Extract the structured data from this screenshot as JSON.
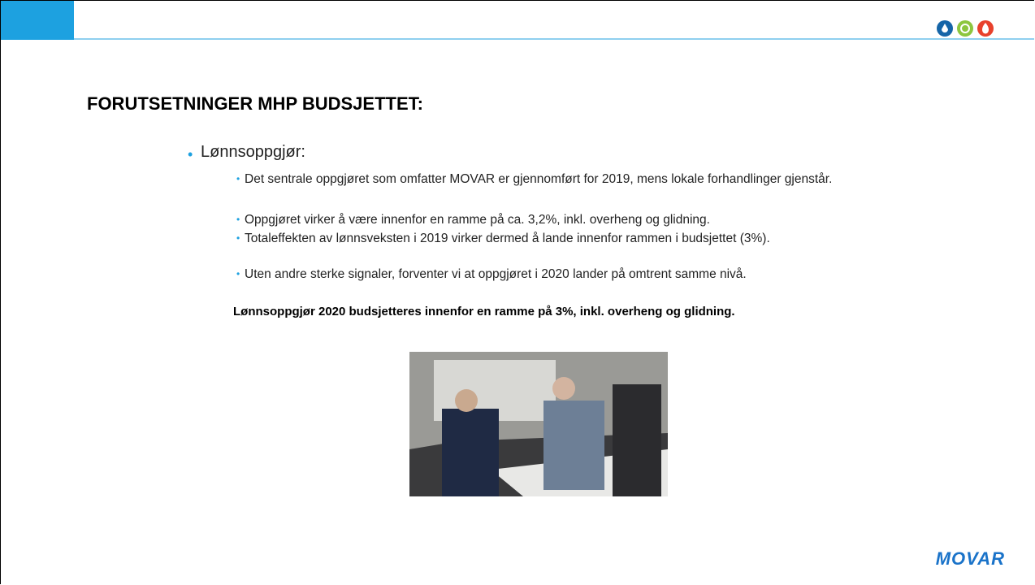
{
  "header": {
    "title": "FORUTSETNINGER MHP BUDSJETTET:"
  },
  "content": {
    "heading": "Lønnsoppgjør:",
    "bullets": [
      "Det sentrale oppgjøret som omfatter MOVAR er gjennomført for 2019, mens lokale forhandlinger gjenstår.",
      "Oppgjøret virker å være innenfor en ramme på ca. 3,2%, inkl. overheng og glidning.",
      "Totaleffekten av lønnsveksten i 2019 virker dermed å lande innenfor rammen i budsjettet (3%).",
      "Uten andre sterke signaler, forventer vi at oppgjøret i 2020 lander på omtrent samme nivå."
    ],
    "conclusion": "Lønnsoppgjør 2020 budsjetteres innenfor en ramme på 3%, inkl. overheng og glidning."
  },
  "footer": {
    "logo": "MOVAR"
  }
}
